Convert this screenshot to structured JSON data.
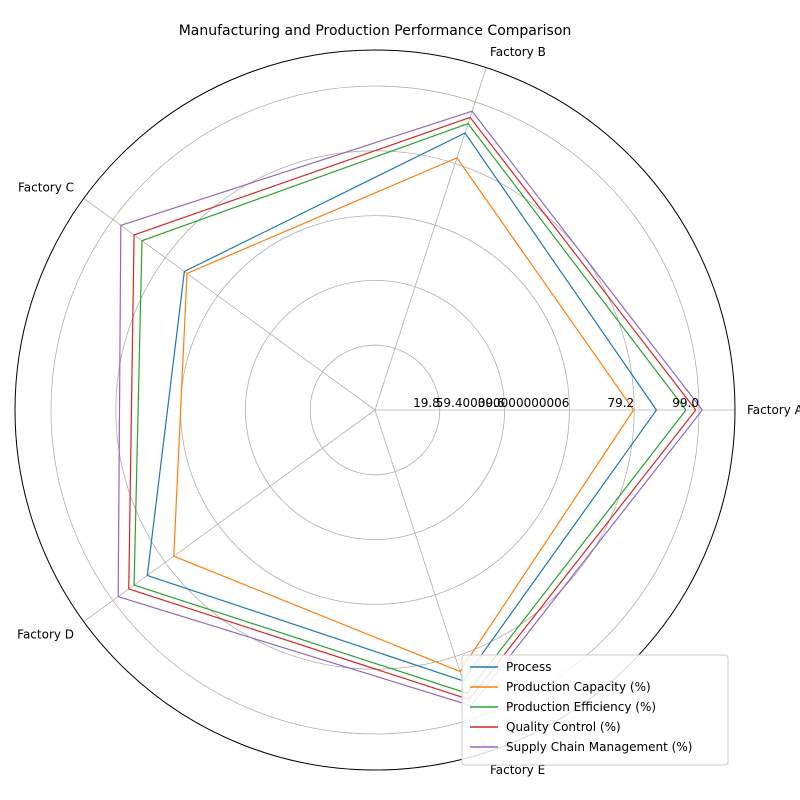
{
  "chart_data": {
    "type": "radar",
    "title": "Manufacturing and Production Performance Comparison",
    "categories": [
      "Factory A",
      "Factory B",
      "Factory C",
      "Factory D",
      "Factory E"
    ],
    "r_max": 110,
    "r_ticks": [
      19.8,
      39.6,
      59.4,
      79.2,
      99.0
    ],
    "r_tick_labels": [
      "19.8",
      "39.6",
      "59.400000000000006",
      "79.2",
      "99.0"
    ],
    "legend_position": "lower-right",
    "grid": true,
    "series": [
      {
        "name": "Process",
        "color": "#1f77b4",
        "values": [
          86,
          89,
          72,
          86,
          87
        ]
      },
      {
        "name": "Production Capacity (%)",
        "color": "#ff7f0e",
        "values": [
          79,
          81,
          71,
          76,
          84
        ]
      },
      {
        "name": "Production Efficiency (%)",
        "color": "#2ca02c",
        "values": [
          95,
          92,
          88,
          91,
          91
        ]
      },
      {
        "name": "Quality Control (%)",
        "color": "#d62728",
        "values": [
          98,
          94,
          91,
          93,
          93
        ]
      },
      {
        "name": "Supply Chain Management (%)",
        "color": "#9467bd",
        "values": [
          100,
          96,
          96,
          97,
          95
        ]
      }
    ]
  }
}
